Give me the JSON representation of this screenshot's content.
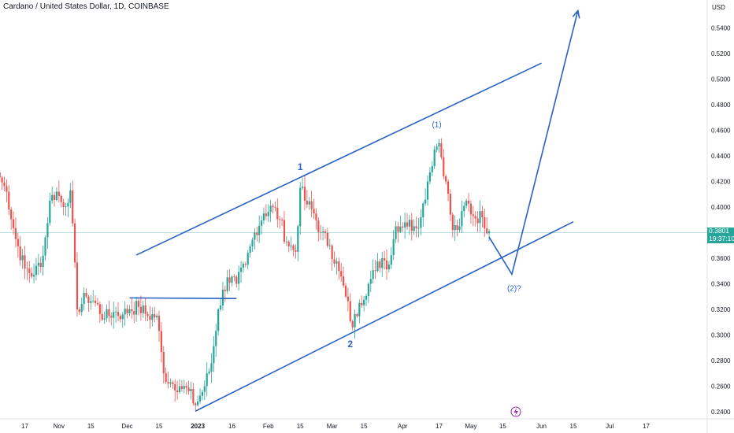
{
  "header": {
    "symbol_title": "Cardano / United States Dollar, 1D, COINBASE",
    "currency": "USD"
  },
  "price_badge": {
    "price": "0.3801",
    "countdown": "19:37:10",
    "color": "#26a69a"
  },
  "colors": {
    "up": "#26a69a",
    "down": "#ef5350",
    "drawing": "#2962c4",
    "grid": "#f0f3fa",
    "price_line": "#26a69a"
  },
  "event_icon": "lightning-icon",
  "chart_data": {
    "type": "candlestick",
    "symbol": "Cardano / United States Dollar",
    "interval": "1D",
    "exchange": "COINBASE",
    "y_ticks": [
      "0.5400",
      "0.5200",
      "0.5000",
      "0.4800",
      "0.4600",
      "0.4400",
      "0.4200",
      "0.4000",
      "0.3600",
      "0.3400",
      "0.3200",
      "0.3000",
      "0.2800",
      "0.2600",
      "0.2400"
    ],
    "ylim": [
      0.2345,
      0.5545
    ],
    "x_ticks": [
      {
        "label": "17",
        "date": "2022-10-17"
      },
      {
        "label": "Nov",
        "date": "2022-11-01"
      },
      {
        "label": "15",
        "date": "2022-11-15"
      },
      {
        "label": "Dec",
        "date": "2022-12-01"
      },
      {
        "label": "15",
        "date": "2022-12-15"
      },
      {
        "label": "2023",
        "date": "2023-01-01"
      },
      {
        "label": "16",
        "date": "2023-01-16"
      },
      {
        "label": "Feb",
        "date": "2023-02-01"
      },
      {
        "label": "15",
        "date": "2023-02-15"
      },
      {
        "label": "Mar",
        "date": "2023-03-01"
      },
      {
        "label": "15",
        "date": "2023-03-15"
      },
      {
        "label": "Apr",
        "date": "2023-04-01"
      },
      {
        "label": "17",
        "date": "2023-04-17"
      },
      {
        "label": "May",
        "date": "2023-05-01"
      },
      {
        "label": "15",
        "date": "2023-05-15"
      },
      {
        "label": "Jun",
        "date": "2023-06-01"
      },
      {
        "label": "15",
        "date": "2023-06-15"
      },
      {
        "label": "Jul",
        "date": "2023-07-01"
      },
      {
        "label": "17",
        "date": "2023-07-17"
      }
    ],
    "price_keypoints": [
      [
        "2022-10-06",
        0.423
      ],
      [
        "2022-10-09",
        0.412
      ],
      [
        "2022-10-13",
        0.375
      ],
      [
        "2022-10-17",
        0.352
      ],
      [
        "2022-10-21",
        0.347
      ],
      [
        "2022-10-25",
        0.362
      ],
      [
        "2022-10-28",
        0.405
      ],
      [
        "2022-10-31",
        0.412
      ],
      [
        "2022-11-03",
        0.4
      ],
      [
        "2022-11-06",
        0.413
      ],
      [
        "2022-11-09",
        0.32
      ],
      [
        "2022-11-13",
        0.33
      ],
      [
        "2022-11-17",
        0.325
      ],
      [
        "2022-11-21",
        0.313
      ],
      [
        "2022-11-25",
        0.318
      ],
      [
        "2022-11-29",
        0.316
      ],
      [
        "2022-12-02",
        0.32
      ],
      [
        "2022-12-06",
        0.322
      ],
      [
        "2022-12-10",
        0.315
      ],
      [
        "2022-12-14",
        0.315
      ],
      [
        "2022-12-17",
        0.27
      ],
      [
        "2022-12-20",
        0.263
      ],
      [
        "2022-12-24",
        0.26
      ],
      [
        "2022-12-28",
        0.256
      ],
      [
        "2022-12-31",
        0.245
      ],
      [
        "2023-01-04",
        0.26
      ],
      [
        "2023-01-07",
        0.278
      ],
      [
        "2023-01-10",
        0.32
      ],
      [
        "2023-01-14",
        0.345
      ],
      [
        "2023-01-18",
        0.34
      ],
      [
        "2023-01-22",
        0.355
      ],
      [
        "2023-01-26",
        0.38
      ],
      [
        "2023-01-30",
        0.395
      ],
      [
        "2023-02-03",
        0.4
      ],
      [
        "2023-02-06",
        0.39
      ],
      [
        "2023-02-09",
        0.373
      ],
      [
        "2023-02-13",
        0.365
      ],
      [
        "2023-02-15",
        0.415
      ],
      [
        "2023-02-17",
        0.405
      ],
      [
        "2023-02-21",
        0.395
      ],
      [
        "2023-02-24",
        0.38
      ],
      [
        "2023-02-28",
        0.37
      ],
      [
        "2023-03-04",
        0.35
      ],
      [
        "2023-03-07",
        0.33
      ],
      [
        "2023-03-10",
        0.306
      ],
      [
        "2023-03-13",
        0.325
      ],
      [
        "2023-03-17",
        0.34
      ],
      [
        "2023-03-20",
        0.35
      ],
      [
        "2023-03-23",
        0.36
      ],
      [
        "2023-03-26",
        0.355
      ],
      [
        "2023-03-29",
        0.385
      ],
      [
        "2023-04-02",
        0.388
      ],
      [
        "2023-04-06",
        0.385
      ],
      [
        "2023-04-09",
        0.392
      ],
      [
        "2023-04-12",
        0.42
      ],
      [
        "2023-04-15",
        0.445
      ],
      [
        "2023-04-17",
        0.45
      ],
      [
        "2023-04-20",
        0.42
      ],
      [
        "2023-04-23",
        0.382
      ],
      [
        "2023-04-26",
        0.385
      ],
      [
        "2023-04-29",
        0.405
      ],
      [
        "2023-05-02",
        0.393
      ],
      [
        "2023-05-06",
        0.392
      ],
      [
        "2023-05-09",
        0.381
      ]
    ],
    "drawings": {
      "upper_channel_line": {
        "from": [
          "2022-12-05",
          0.3625
        ],
        "to": [
          "2023-06-01",
          0.5125
        ]
      },
      "lower_channel_line": {
        "from": [
          "2022-12-31",
          0.2405
        ],
        "to": [
          "2023-06-15",
          0.3885
        ]
      },
      "horizontal_line": {
        "from": [
          "2022-12-02",
          0.329
        ],
        "to": [
          "2023-01-18",
          0.3285
        ]
      },
      "projection_path": [
        [
          "2023-05-09",
          0.3765
        ],
        [
          "2023-05-19",
          0.3475
        ],
        [
          "2023-06-17",
          0.5535
        ]
      ],
      "labels": [
        {
          "text": "1",
          "date": "2023-02-15",
          "price": 0.4315
        },
        {
          "text": "2",
          "date": "2023-03-09",
          "price": 0.293
        },
        {
          "text": "(1)",
          "date": "2023-04-16",
          "price": 0.465
        },
        {
          "text": "(2)?",
          "date": "2023-05-20",
          "price": 0.337
        }
      ]
    },
    "last_price": 0.3801,
    "grid": false,
    "legend": "none"
  }
}
